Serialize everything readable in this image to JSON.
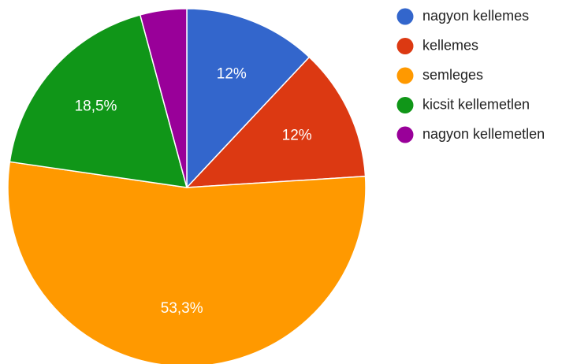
{
  "chart_data": {
    "type": "pie",
    "start_angle_deg": 0,
    "direction": "clockwise",
    "legend_position": "right",
    "slices": [
      {
        "label": "nagyon kellemes",
        "value": 12.0,
        "data_label": "12%",
        "color": "#3366cc"
      },
      {
        "label": "kellemes",
        "value": 12.0,
        "data_label": "12%",
        "color": "#dc3912"
      },
      {
        "label": "semleges",
        "value": 53.3,
        "data_label": "53,3%",
        "color": "#ff9900"
      },
      {
        "label": "kicsit kellemetlen",
        "value": 18.5,
        "data_label": "18,5%",
        "color": "#109618"
      },
      {
        "label": "nagyon kellemetlen",
        "value": 4.2,
        "data_label": "",
        "color": "#990099"
      }
    ]
  }
}
